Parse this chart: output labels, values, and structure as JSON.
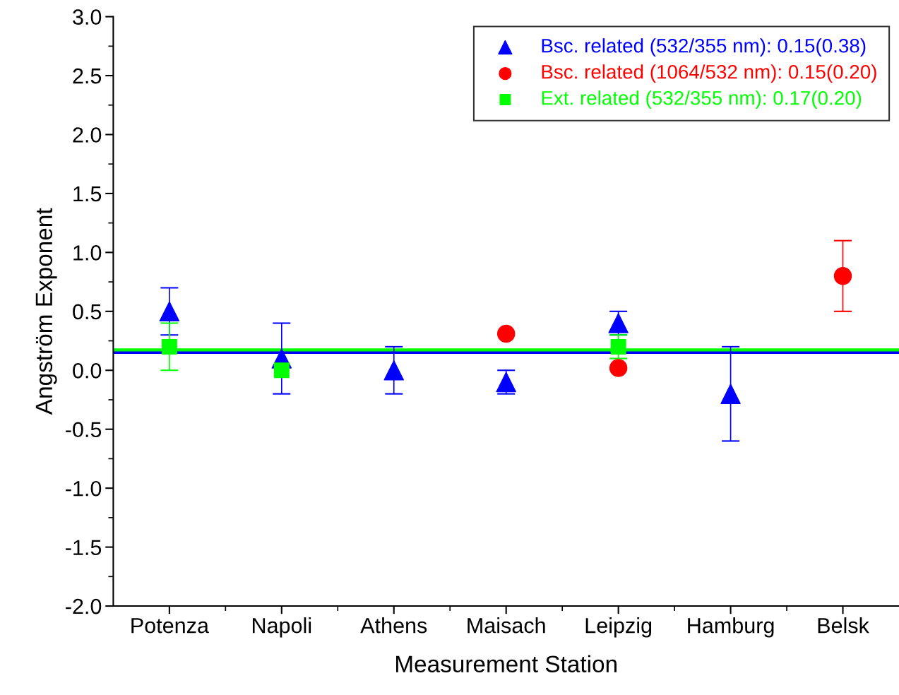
{
  "chart_data": {
    "type": "scatter",
    "xlabel": "Measurement Station",
    "ylabel": "Angström Exponent",
    "categories": [
      "Potenza",
      "Napoli",
      "Athens",
      "Maisach",
      "Leipzig",
      "Hamburg",
      "Belsk"
    ],
    "series": [
      {
        "name": "Bsc. related (532/355 nm): 0.15(0.38)",
        "color": "#0000ff",
        "marker": "triangle",
        "values": [
          0.5,
          0.1,
          0.0,
          -0.1,
          0.4,
          -0.2,
          null
        ],
        "errors": [
          0.2,
          0.3,
          0.2,
          0.1,
          0.1,
          0.4,
          null
        ]
      },
      {
        "name": "Bsc. related (1064/532 nm): 0.15(0.20)",
        "color": "#ff0000",
        "marker": "circle",
        "values": [
          null,
          null,
          null,
          0.31,
          0.02,
          null,
          0.8
        ],
        "errors": [
          null,
          null,
          null,
          null,
          null,
          null,
          0.3
        ]
      },
      {
        "name": "Ext. related (532/355 nm): 0.17(0.20)",
        "color": "#00ff00",
        "marker": "square",
        "values": [
          0.2,
          0.0,
          null,
          null,
          0.2,
          null,
          null
        ],
        "errors": [
          0.2,
          null,
          null,
          null,
          0.1,
          null,
          null
        ]
      }
    ],
    "ref_lines": [
      {
        "axis": "y",
        "value": 0.17,
        "color": "#00ff00"
      },
      {
        "axis": "y",
        "value": 0.15,
        "color": "#0000ff"
      }
    ],
    "ylim": [
      -2.0,
      3.0
    ],
    "yticks": [
      {
        "value": -2,
        "label": "-2.0"
      },
      {
        "value": -1.5,
        "label": "-1.5"
      },
      {
        "value": -1,
        "label": "-1.0"
      },
      {
        "value": -0.5,
        "label": "-0.5"
      },
      {
        "value": 0,
        "label": "0.0"
      },
      {
        "value": 0.5,
        "label": "0.5"
      },
      {
        "value": 1,
        "label": "1.0"
      },
      {
        "value": 1.5,
        "label": "1.5"
      },
      {
        "value": 2,
        "label": "2.0"
      },
      {
        "value": 2.5,
        "label": "2.5"
      },
      {
        "value": 3,
        "label": "3.0"
      }
    ],
    "grid": false,
    "legend": "top right"
  }
}
